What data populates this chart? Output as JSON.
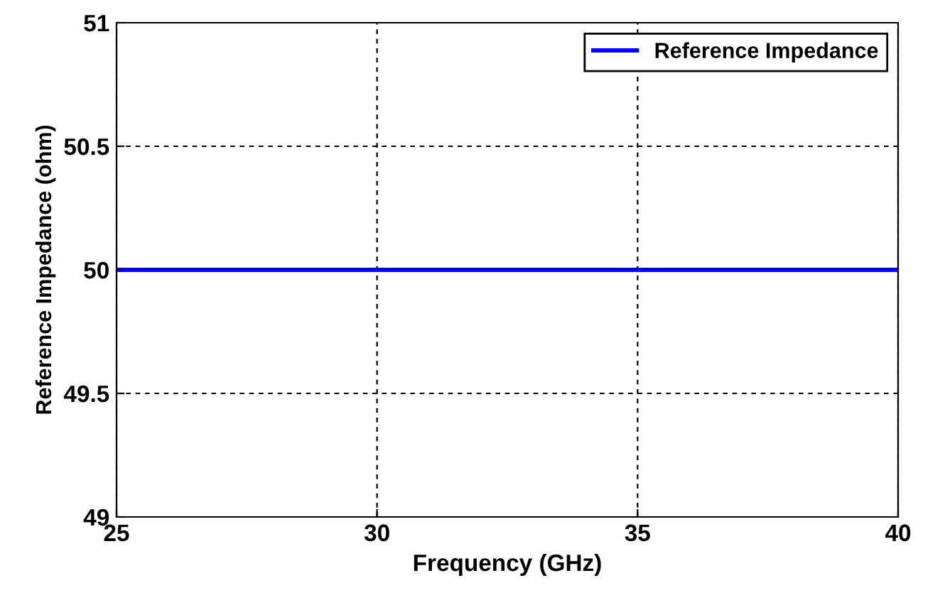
{
  "chart_data": {
    "type": "line",
    "xlabel": "Frequency (GHz)",
    "ylabel": "Reference Impedance (ohm)",
    "series": [
      {
        "name": "Reference Impedance",
        "color": "#0000ff",
        "x": [
          25,
          40
        ],
        "values": [
          50,
          50
        ]
      }
    ],
    "xlim": [
      25,
      40
    ],
    "xticks": [
      25,
      30,
      35,
      40
    ],
    "ylim": [
      49,
      51
    ],
    "yticks": [
      49,
      49.5,
      50,
      50.5,
      51
    ],
    "grid": true,
    "legend": "top right",
    "line_style": "solid"
  }
}
